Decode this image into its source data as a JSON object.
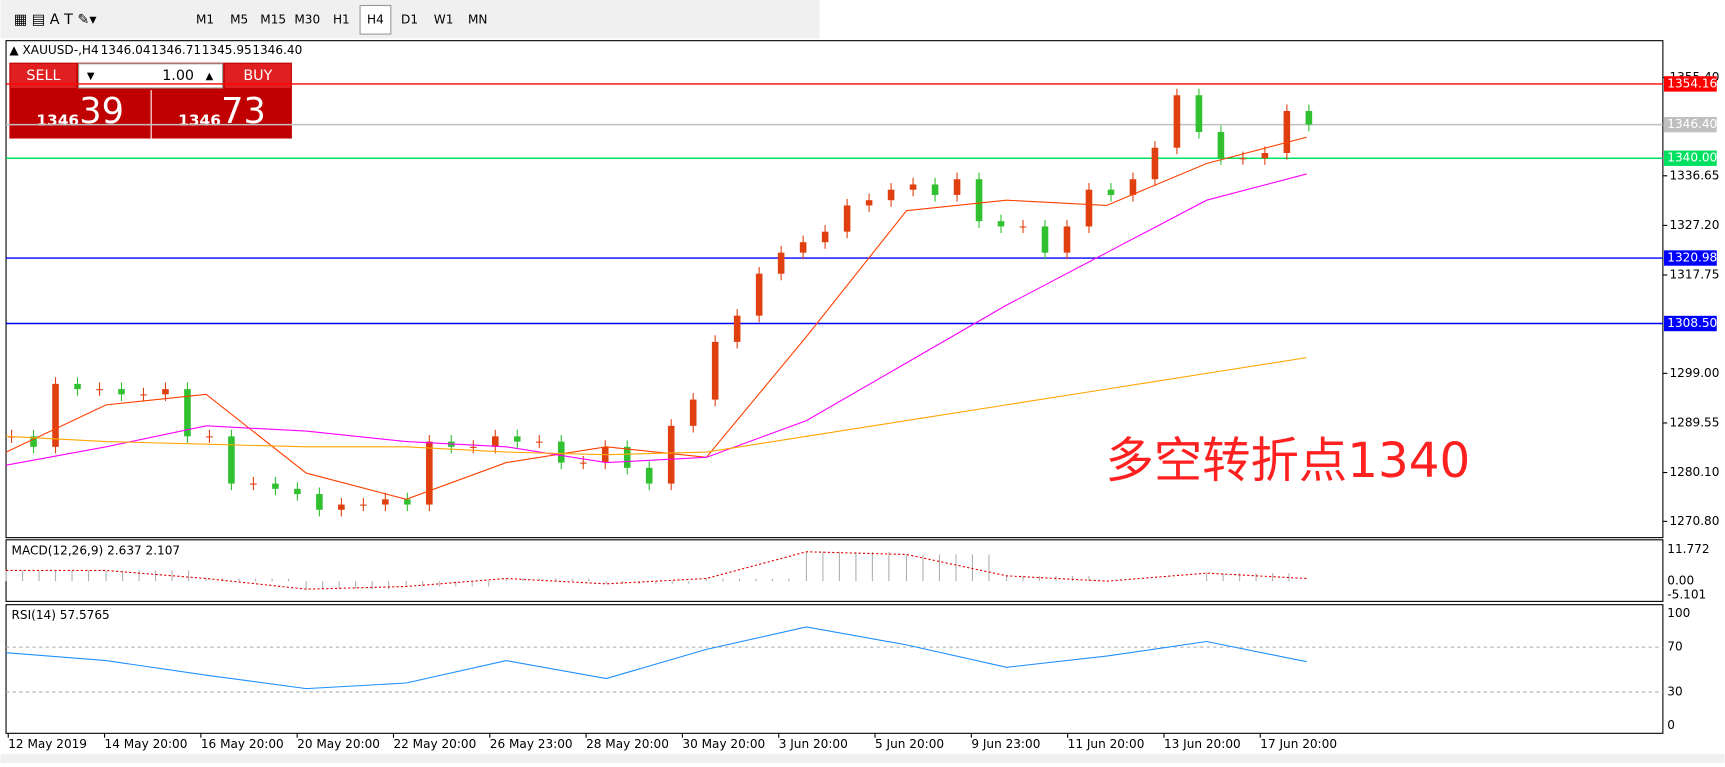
{
  "toolbar": {
    "timeframes": [
      "M1",
      "M5",
      "M15",
      "M30",
      "H1",
      "H4",
      "D1",
      "W1",
      "MN"
    ],
    "selected": "H4"
  },
  "header": {
    "symbol": "XAUUSD-,H4",
    "open": "1346.04",
    "high": "1346.71",
    "low": "1345.95",
    "close": "1346.40"
  },
  "trade_panel": {
    "sell": "SELL",
    "buy": "BUY",
    "lot": "1.00",
    "bid_big": "1346",
    "bid_small": "39",
    "ask_big": "1346",
    "ask_small": "73"
  },
  "price_axis": {
    "ylim": [
      1267.7,
      1362.4
    ],
    "ticks": [
      {
        "value": 1355.4,
        "label": "1355.40"
      },
      {
        "value": 1336.65,
        "label": "1336.65"
      },
      {
        "value": 1327.2,
        "label": "1327.20"
      },
      {
        "value": 1317.75,
        "label": "1317.75"
      },
      {
        "value": 1299,
        "label": "1299.00"
      },
      {
        "value": 1289.55,
        "label": "1289.55"
      },
      {
        "value": 1280.1,
        "label": "1280.10"
      },
      {
        "value": 1270.8,
        "label": "1270.80"
      }
    ]
  },
  "levels": [
    {
      "value": 1354.16,
      "label": "1354.16",
      "color": "#ff0000"
    },
    {
      "value": 1346.4,
      "label": "1346.40",
      "color": "#c0c0c0"
    },
    {
      "value": 1340,
      "label": "1340.00",
      "color": "#00e060"
    },
    {
      "value": 1320.98,
      "label": "1320.98",
      "color": "#0000ff"
    },
    {
      "value": 1308.5,
      "label": "1308.50",
      "color": "#0000ff"
    }
  ],
  "closes": [
    1287,
    1285,
    1297,
    1296,
    1296,
    1295,
    1295,
    1296,
    1287,
    1287,
    1278,
    1278,
    1277,
    1276,
    1273,
    1274,
    1274,
    1275,
    1274,
    1286,
    1285,
    1285,
    1287,
    1286,
    1286,
    1282,
    1282,
    1285,
    1281,
    1278,
    1289,
    1294,
    1305,
    1310,
    1318,
    1322,
    1324,
    1326,
    1331,
    1332,
    1334,
    1335,
    1333,
    1336,
    1328,
    1327,
    1327,
    1322,
    1327,
    1334,
    1333,
    1336,
    1342,
    1352,
    1345,
    1340,
    1340,
    1341,
    1349,
    1346.4
  ],
  "moving_averages": [
    {
      "color": "#ff4000",
      "values": [
        1284,
        1293,
        1295,
        1280,
        1275,
        1282,
        1285,
        1283,
        1306,
        1330,
        1332,
        1331,
        1339,
        1344
      ]
    },
    {
      "color": "#ff00ff",
      "values": [
        1281.5,
        1285,
        1289,
        1288,
        1286,
        1285,
        1282,
        1283,
        1290,
        1301,
        1312,
        1322,
        1332,
        1337
      ]
    },
    {
      "color": "#ffa500",
      "values": [
        1287,
        1286,
        1285.5,
        1285,
        1285,
        1284,
        1283.5,
        1284,
        1287,
        1290,
        1293,
        1296,
        1299,
        1302
      ]
    }
  ],
  "annotation": "多空转折点1340",
  "macd": {
    "label": "MACD(12,26,9) 2.637 2.107",
    "ticks": [
      {
        "value": 11.772,
        "label": "11.772"
      },
      {
        "value": 0,
        "label": "0.00"
      },
      {
        "value": -5.101,
        "label": "-5.101"
      }
    ],
    "histogram": [
      4,
      4,
      1,
      -3,
      -2,
      1,
      -1,
      1,
      11,
      10,
      2,
      0,
      3,
      1
    ]
  },
  "rsi": {
    "label": "RSI(14) 57.5765",
    "ticks": [
      100,
      70,
      30,
      0
    ],
    "values": [
      65,
      58,
      45,
      33,
      38,
      58,
      42,
      68,
      88,
      72,
      52,
      62,
      75,
      57
    ]
  },
  "time_axis": [
    "12 May 2019",
    "14 May 20:00",
    "16 May 20:00",
    "20 May 20:00",
    "22 May 20:00",
    "26 May 23:00",
    "28 May 20:00",
    "30 May 20:00",
    "3 Jun 20:00",
    "5 Jun 20:00",
    "9 Jun 23:00",
    "11 Jun 20:00",
    "13 Jun 20:00",
    "17 Jun 20:00"
  ]
}
